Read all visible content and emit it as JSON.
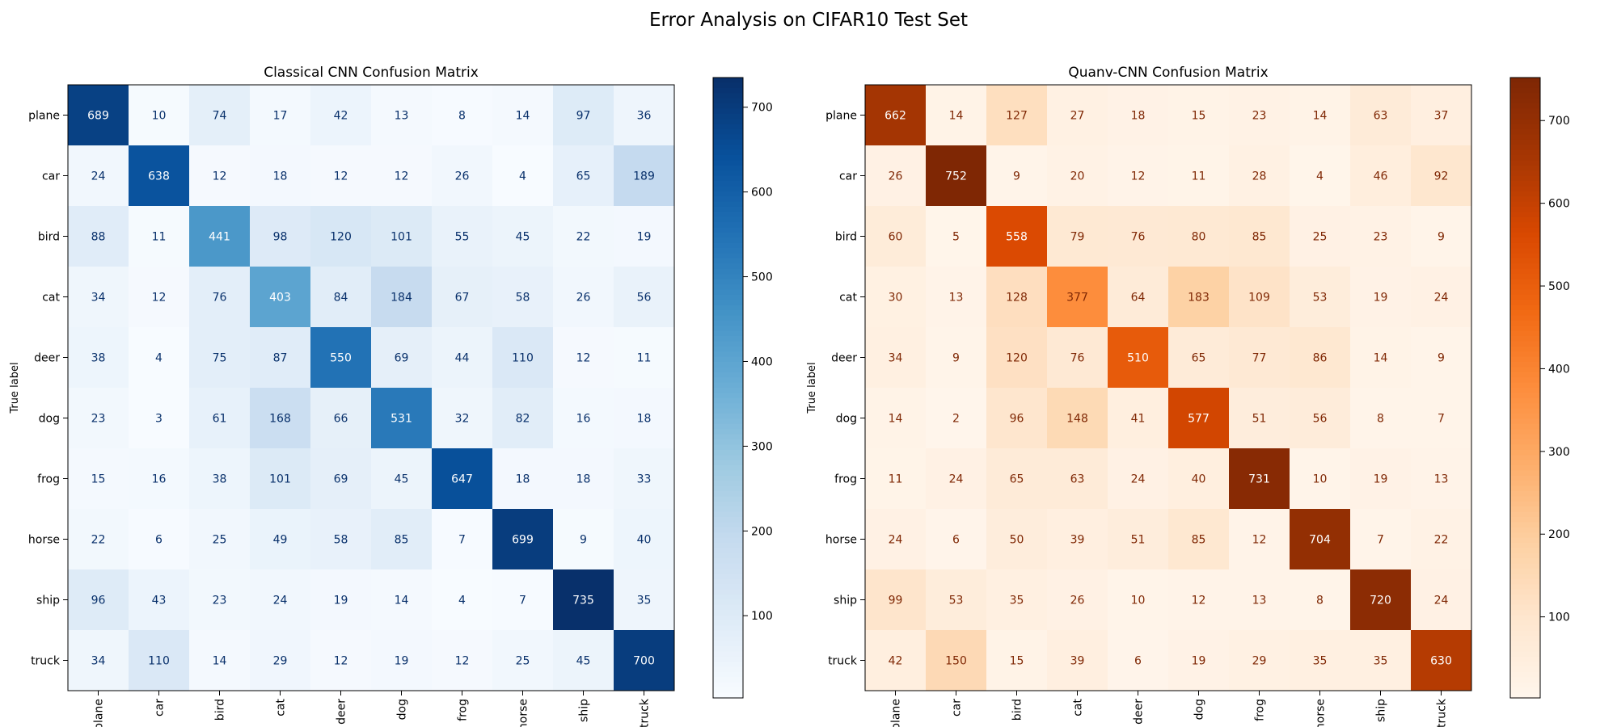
{
  "figure": {
    "title": "Error Analysis on CIFAR10 Test Set"
  },
  "chart_data": [
    {
      "type": "heatmap",
      "title": "Classical CNN Confusion Matrix",
      "ylabel": "True label",
      "xlabel": "",
      "x_categories": [
        "plane",
        "car",
        "bird",
        "cat",
        "deer",
        "dog",
        "frog",
        "horse",
        "ship",
        "truck"
      ],
      "y_categories": [
        "plane",
        "car",
        "bird",
        "cat",
        "deer",
        "dog",
        "frog",
        "horse",
        "ship",
        "truck"
      ],
      "values": [
        [
          689,
          10,
          74,
          17,
          42,
          13,
          8,
          14,
          97,
          36
        ],
        [
          24,
          638,
          12,
          18,
          12,
          12,
          26,
          4,
          65,
          189
        ],
        [
          88,
          11,
          441,
          98,
          120,
          101,
          55,
          45,
          22,
          19
        ],
        [
          34,
          12,
          76,
          403,
          84,
          184,
          67,
          58,
          26,
          56
        ],
        [
          38,
          4,
          75,
          87,
          550,
          69,
          44,
          110,
          12,
          11
        ],
        [
          23,
          3,
          61,
          168,
          66,
          531,
          32,
          82,
          16,
          18
        ],
        [
          15,
          16,
          38,
          101,
          69,
          45,
          647,
          18,
          18,
          33
        ],
        [
          22,
          6,
          25,
          49,
          58,
          85,
          7,
          699,
          9,
          40
        ],
        [
          96,
          43,
          23,
          24,
          19,
          14,
          4,
          7,
          735,
          35
        ],
        [
          34,
          110,
          14,
          29,
          12,
          19,
          12,
          25,
          45,
          700
        ]
      ],
      "colormap": "Blues",
      "colorbar": {
        "range": [
          3,
          735
        ],
        "ticks": [
          100,
          200,
          300,
          400,
          500,
          600,
          700
        ]
      }
    },
    {
      "type": "heatmap",
      "title": "Quanv-CNN Confusion Matrix",
      "ylabel": "True label",
      "xlabel": "",
      "x_categories": [
        "plane",
        "car",
        "bird",
        "cat",
        "deer",
        "dog",
        "frog",
        "horse",
        "ship",
        "truck"
      ],
      "y_categories": [
        "plane",
        "car",
        "bird",
        "cat",
        "deer",
        "dog",
        "frog",
        "horse",
        "ship",
        "truck"
      ],
      "values": [
        [
          662,
          14,
          127,
          27,
          18,
          15,
          23,
          14,
          63,
          37
        ],
        [
          26,
          752,
          9,
          20,
          12,
          11,
          28,
          4,
          46,
          92
        ],
        [
          60,
          5,
          558,
          79,
          76,
          80,
          85,
          25,
          23,
          9
        ],
        [
          30,
          13,
          128,
          377,
          64,
          183,
          109,
          53,
          19,
          24
        ],
        [
          34,
          9,
          120,
          76,
          510,
          65,
          77,
          86,
          14,
          9
        ],
        [
          14,
          2,
          96,
          148,
          41,
          577,
          51,
          56,
          8,
          7
        ],
        [
          11,
          24,
          65,
          63,
          24,
          40,
          731,
          10,
          19,
          13
        ],
        [
          24,
          6,
          50,
          39,
          51,
          85,
          12,
          704,
          7,
          22
        ],
        [
          99,
          53,
          35,
          26,
          10,
          12,
          13,
          8,
          720,
          24
        ],
        [
          42,
          150,
          15,
          39,
          6,
          19,
          29,
          35,
          35,
          630
        ]
      ],
      "colormap": "Oranges",
      "colorbar": {
        "range": [
          2,
          752
        ],
        "ticks": [
          100,
          200,
          300,
          400,
          500,
          600,
          700
        ]
      }
    }
  ]
}
